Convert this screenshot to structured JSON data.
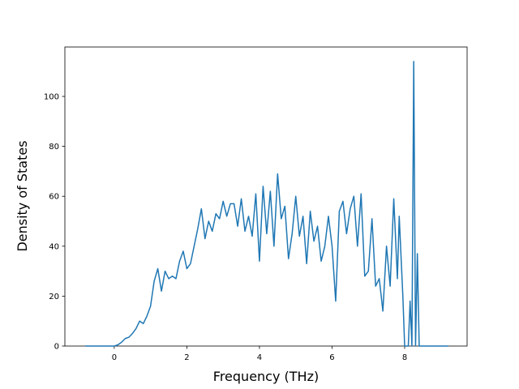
{
  "chart_data": {
    "type": "line",
    "xlabel": "Frequency (THz)",
    "ylabel": "Density of States",
    "x": [
      -0.8,
      -0.7,
      -0.6,
      -0.5,
      -0.4,
      -0.3,
      -0.2,
      -0.1,
      0,
      0.1,
      0.2,
      0.3,
      0.4,
      0.5,
      0.6,
      0.7,
      0.8,
      0.9,
      1.0,
      1.1,
      1.2,
      1.3,
      1.4,
      1.5,
      1.6,
      1.7,
      1.8,
      1.9,
      2.0,
      2.1,
      2.2,
      2.3,
      2.4,
      2.5,
      2.6,
      2.7,
      2.8,
      2.9,
      3.0,
      3.1,
      3.2,
      3.3,
      3.4,
      3.5,
      3.6,
      3.7,
      3.8,
      3.9,
      4.0,
      4.1,
      4.2,
      4.3,
      4.4,
      4.5,
      4.6,
      4.7,
      4.8,
      4.9,
      5.0,
      5.1,
      5.2,
      5.3,
      5.4,
      5.5,
      5.6,
      5.7,
      5.8,
      5.9,
      6.0,
      6.1,
      6.2,
      6.3,
      6.4,
      6.5,
      6.6,
      6.7,
      6.8,
      6.9,
      7.0,
      7.1,
      7.2,
      7.3,
      7.4,
      7.5,
      7.6,
      7.7,
      7.8,
      7.85,
      7.95,
      8.0,
      8.1,
      8.15,
      8.2,
      8.25,
      8.3,
      8.35,
      8.4,
      8.5,
      8.6,
      8.7,
      8.8,
      8.9,
      9.0,
      9.1,
      9.2
    ],
    "series": [
      {
        "name": "DOS",
        "color": "#1f77b4",
        "values": [
          0,
          0,
          0,
          0,
          0,
          0,
          0,
          0,
          0,
          0.5,
          1.5,
          3,
          3.5,
          5,
          7,
          10,
          9,
          12,
          16,
          26,
          31,
          22,
          30,
          27,
          28,
          27,
          34,
          38,
          31,
          33,
          40,
          47,
          55,
          43,
          50,
          46,
          53,
          51,
          58,
          52,
          57,
          57,
          48,
          59,
          46,
          52,
          44,
          61,
          34,
          64,
          45,
          62,
          40,
          69,
          51,
          56,
          35,
          45,
          60,
          44,
          52,
          33,
          54,
          42,
          48,
          34,
          40,
          52,
          40,
          18,
          54,
          58,
          45,
          55,
          60,
          40,
          61,
          28,
          30,
          51,
          24,
          27,
          14,
          40,
          24,
          59,
          27,
          52,
          20,
          0,
          0,
          18,
          0,
          114,
          0,
          37,
          0,
          0,
          0,
          0,
          0,
          0,
          0,
          0,
          0
        ]
      }
    ],
    "xlim": [
      -1.36,
      9.72
    ],
    "ylim": [
      0,
      119.8
    ],
    "xticks": [
      0,
      2,
      4,
      6,
      8
    ],
    "yticks": [
      0,
      20,
      40,
      60,
      80,
      100
    ]
  }
}
